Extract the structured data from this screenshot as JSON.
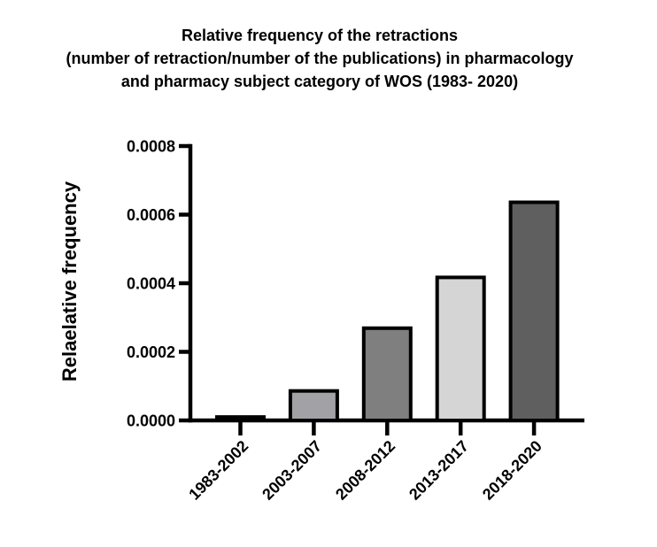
{
  "chart_data": {
    "type": "bar",
    "title": "Relative frequency of the retractions (number of retraction/number of the publications) in pharmacology and pharmacy subject category of WOS (1983- 2020)",
    "title_lines": [
      "Relative frequency of the retractions",
      "(number of retraction/number of the publications) in pharmacology",
      "and pharmacy subject category of WOS (1983- 2020)"
    ],
    "ylabel": "Relaelative frequency",
    "xlabel": "",
    "categories": [
      "1983-2002",
      "2003-2007",
      "2008-2012",
      "2013-2017",
      "2018-2020"
    ],
    "values": [
      1e-05,
      8.6e-05,
      0.000269,
      0.000417,
      0.000636
    ],
    "bar_colors": [
      "#000000",
      "#a2a2a6",
      "#7f7f7f",
      "#d5d5d5",
      "#5f5f5f"
    ],
    "bar_border_color": "#000000",
    "ylim": [
      0,
      0.0008
    ],
    "yticks": [
      {
        "value": 0.0,
        "label": "0.0000"
      },
      {
        "value": 0.0002,
        "label": "0.0002"
      },
      {
        "value": 0.0004,
        "label": "0.0004"
      },
      {
        "value": 0.0006,
        "label": "0.0006"
      },
      {
        "value": 0.0008,
        "label": "0.0008"
      }
    ],
    "grid": false,
    "legend": "none",
    "axis_color": "#000000",
    "text_color": "#000000",
    "background_color": "#ffffff"
  }
}
